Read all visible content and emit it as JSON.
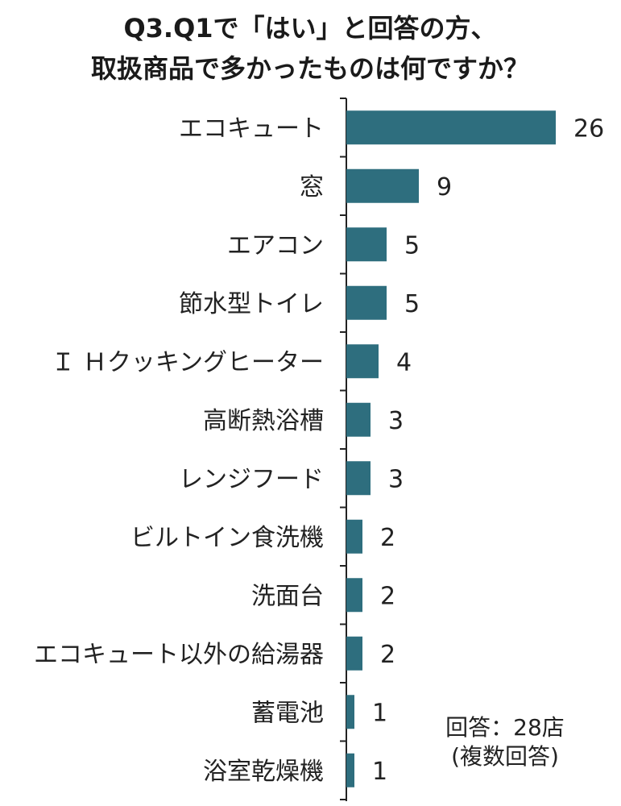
{
  "chart_data": {
    "type": "bar",
    "orientation": "horizontal",
    "title": [
      "Q3.Q1で「はい」と回答の方、",
      "取扱商品で多かったものは何ですか？"
    ],
    "categories": [
      "エコキュート",
      "窓",
      "エアコン",
      "節水型トイレ",
      "Ｉ Ｈクッキングヒーター",
      "高断熱浴槽",
      "レンジフード",
      "ビルトイン食洗機",
      "洗面台",
      "エコキュート以外の給湯器",
      "蓄電池",
      "浴室乾燥機"
    ],
    "values": [
      26,
      9,
      5,
      5,
      4,
      3,
      3,
      2,
      2,
      2,
      1,
      1
    ],
    "bar_color": "#2e6e7e",
    "grid": false,
    "note": [
      "回答：28店",
      "(複数回答)"
    ]
  }
}
